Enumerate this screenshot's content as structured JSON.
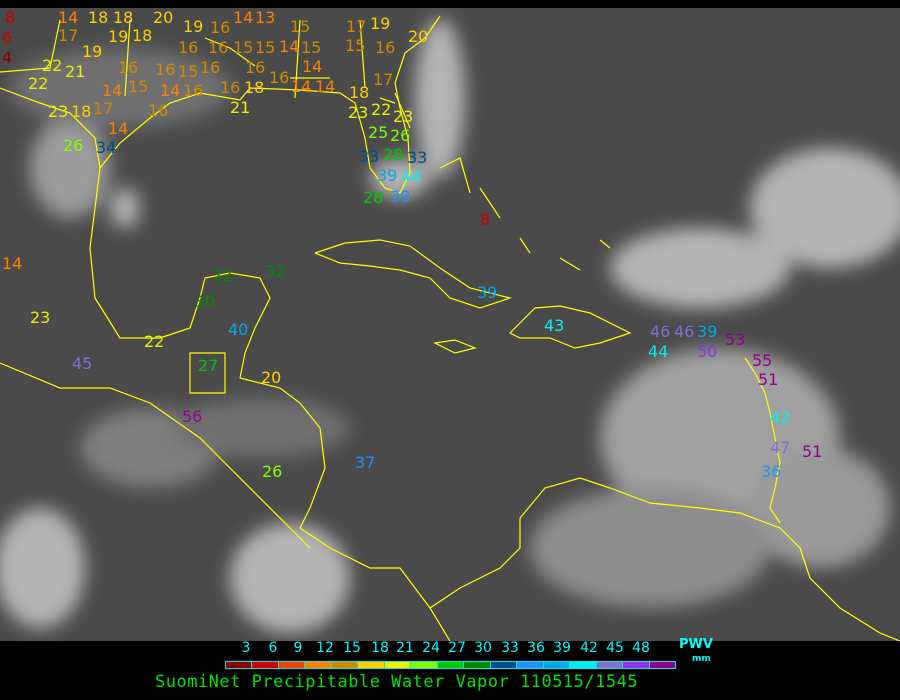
{
  "title": "SuomiNet Precipitable Water Vapor 110515/1545",
  "legend": {
    "ticks": [
      "3",
      "6",
      "9",
      "12",
      "15",
      "18",
      "21",
      "24",
      "27",
      "30",
      "33",
      "36",
      "39",
      "42",
      "45",
      "48"
    ],
    "unit_label": "PWV",
    "unit": "mm",
    "colors": [
      "#8b0000",
      "#d00000",
      "#f04000",
      "#ff8000",
      "#d08a00",
      "#ffd000",
      "#e8f000",
      "#80ff00",
      "#00c800",
      "#008c00",
      "#004c8c",
      "#2090ff",
      "#00a8f0",
      "#00f0f0",
      "#8070d0",
      "#9030f0",
      "#900090"
    ]
  },
  "colors": {
    "coastline": "#ffff00",
    "background": "#4a4a4a"
  },
  "stations": [
    "8",
    "6",
    "4",
    "14",
    "18",
    "18",
    "20",
    "19",
    "16",
    "14",
    "13",
    "15",
    "17",
    "19",
    "17",
    "19",
    "19",
    "18",
    "16",
    "16",
    "15",
    "15",
    "14",
    "15",
    "14",
    "15",
    "16",
    "20",
    "22",
    "21",
    "22",
    "16",
    "16",
    "15",
    "16",
    "16",
    "16",
    "14",
    "14",
    "14",
    "15",
    "14",
    "16",
    "16",
    "18",
    "17",
    "18",
    "23",
    "23",
    "18",
    "17",
    "14",
    "16",
    "21",
    "22",
    "23",
    "25",
    "26",
    "28",
    "33",
    "26",
    "34",
    "33",
    "39",
    "44",
    "38",
    "28",
    "8",
    "14",
    "23",
    "32",
    "32",
    "30",
    "40",
    "22",
    "45",
    "27",
    "20",
    "56",
    "26",
    "37",
    "39",
    "43",
    "46",
    "46",
    "39",
    "44",
    "50",
    "53",
    "55",
    "51",
    "42",
    "47",
    "51",
    "36"
  ]
}
